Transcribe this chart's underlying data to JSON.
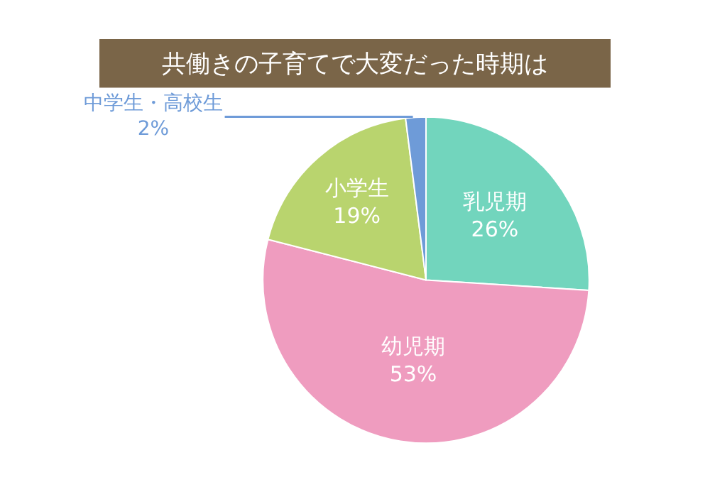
{
  "chart_data": {
    "type": "pie",
    "title": "共働きの子育てで大変だった時期は",
    "categories": [
      "乳児期",
      "幼児期",
      "小学生",
      "中学生・高校生"
    ],
    "values": [
      26,
      53,
      19,
      2
    ],
    "value_labels": [
      "26%",
      "53%",
      "19%",
      "2%"
    ],
    "colors": [
      "#72d5bd",
      "#ef9cbf",
      "#b9d46e",
      "#6e9bd8"
    ],
    "legend": false
  }
}
